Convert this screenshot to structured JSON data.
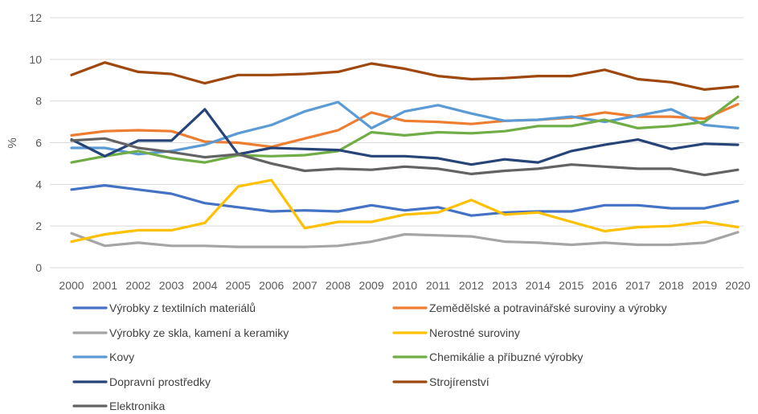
{
  "chart_data": {
    "type": "line",
    "ylabel": "%",
    "ylim": [
      0,
      12
    ],
    "yticks": [
      0,
      2,
      4,
      6,
      8,
      10,
      12
    ],
    "grid": true,
    "legend_position": "bottom",
    "categories": [
      "2000",
      "2001",
      "2002",
      "2003",
      "2004",
      "2005",
      "2006",
      "2007",
      "2008",
      "2009",
      "2010",
      "2011",
      "2012",
      "2013",
      "2014",
      "2015",
      "2016",
      "2017",
      "2018",
      "2019",
      "2020"
    ],
    "series": [
      {
        "name": "Výrobky z textilních materiálů",
        "color": "#4472C4",
        "values": [
          3.75,
          3.95,
          3.75,
          3.55,
          3.1,
          2.9,
          2.7,
          2.75,
          2.7,
          3.0,
          2.75,
          2.9,
          2.5,
          2.65,
          2.7,
          2.7,
          3.0,
          3.0,
          2.85,
          2.85,
          3.2
        ]
      },
      {
        "name": "Zemědělské a potravinářské suroviny a výrobky",
        "color": "#ED7D31",
        "values": [
          6.35,
          6.55,
          6.6,
          6.55,
          6.05,
          6.0,
          5.8,
          6.2,
          6.6,
          7.45,
          7.05,
          7.0,
          6.9,
          7.05,
          7.1,
          7.2,
          7.45,
          7.25,
          7.25,
          7.15,
          7.85
        ]
      },
      {
        "name": "Výrobky ze skla, kamení a keramiky",
        "color": "#A5A5A5",
        "values": [
          1.65,
          1.05,
          1.2,
          1.05,
          1.05,
          1.0,
          1.0,
          1.0,
          1.05,
          1.25,
          1.6,
          1.55,
          1.5,
          1.25,
          1.2,
          1.1,
          1.2,
          1.1,
          1.1,
          1.2,
          1.7
        ]
      },
      {
        "name": "Nerostné suroviny",
        "color": "#FFC000",
        "values": [
          1.25,
          1.6,
          1.8,
          1.8,
          2.15,
          3.9,
          4.2,
          1.9,
          2.2,
          2.2,
          2.55,
          2.65,
          3.25,
          2.55,
          2.65,
          2.2,
          1.75,
          1.95,
          2.0,
          2.2,
          1.95
        ]
      },
      {
        "name": "Kovy",
        "color": "#5B9BD5",
        "values": [
          5.75,
          5.75,
          5.45,
          5.6,
          5.9,
          6.45,
          6.85,
          7.5,
          7.95,
          6.7,
          7.5,
          7.8,
          7.4,
          7.05,
          7.1,
          7.25,
          7.0,
          7.3,
          7.6,
          6.85,
          6.7
        ]
      },
      {
        "name": "Chemikálie a příbuzné výrobky",
        "color": "#70AD47",
        "values": [
          5.05,
          5.35,
          5.6,
          5.25,
          5.05,
          5.4,
          5.35,
          5.4,
          5.6,
          6.5,
          6.35,
          6.5,
          6.45,
          6.55,
          6.8,
          6.8,
          7.1,
          6.7,
          6.8,
          7.0,
          8.2
        ]
      },
      {
        "name": "Dopravní prostředky",
        "color": "#264478",
        "values": [
          6.15,
          5.35,
          6.1,
          6.1,
          7.6,
          5.45,
          5.75,
          5.7,
          5.65,
          5.35,
          5.35,
          5.25,
          4.95,
          5.2,
          5.05,
          5.6,
          5.9,
          6.15,
          5.7,
          5.95,
          5.9
        ]
      },
      {
        "name": "Strojírenství",
        "color": "#9E480E",
        "values": [
          9.25,
          9.85,
          9.4,
          9.3,
          8.85,
          9.25,
          9.25,
          9.3,
          9.4,
          9.8,
          9.55,
          9.2,
          9.05,
          9.1,
          9.2,
          9.2,
          9.5,
          9.05,
          8.9,
          8.55,
          8.7
        ]
      },
      {
        "name": "Elektronika",
        "color": "#636363",
        "values": [
          6.1,
          6.2,
          5.75,
          5.55,
          5.3,
          5.45,
          5.0,
          4.65,
          4.75,
          4.7,
          4.85,
          4.75,
          4.5,
          4.65,
          4.75,
          4.95,
          4.85,
          4.75,
          4.75,
          4.45,
          4.7
        ]
      }
    ],
    "legend_order": [
      0,
      1,
      2,
      3,
      4,
      5,
      6,
      7,
      8
    ]
  }
}
